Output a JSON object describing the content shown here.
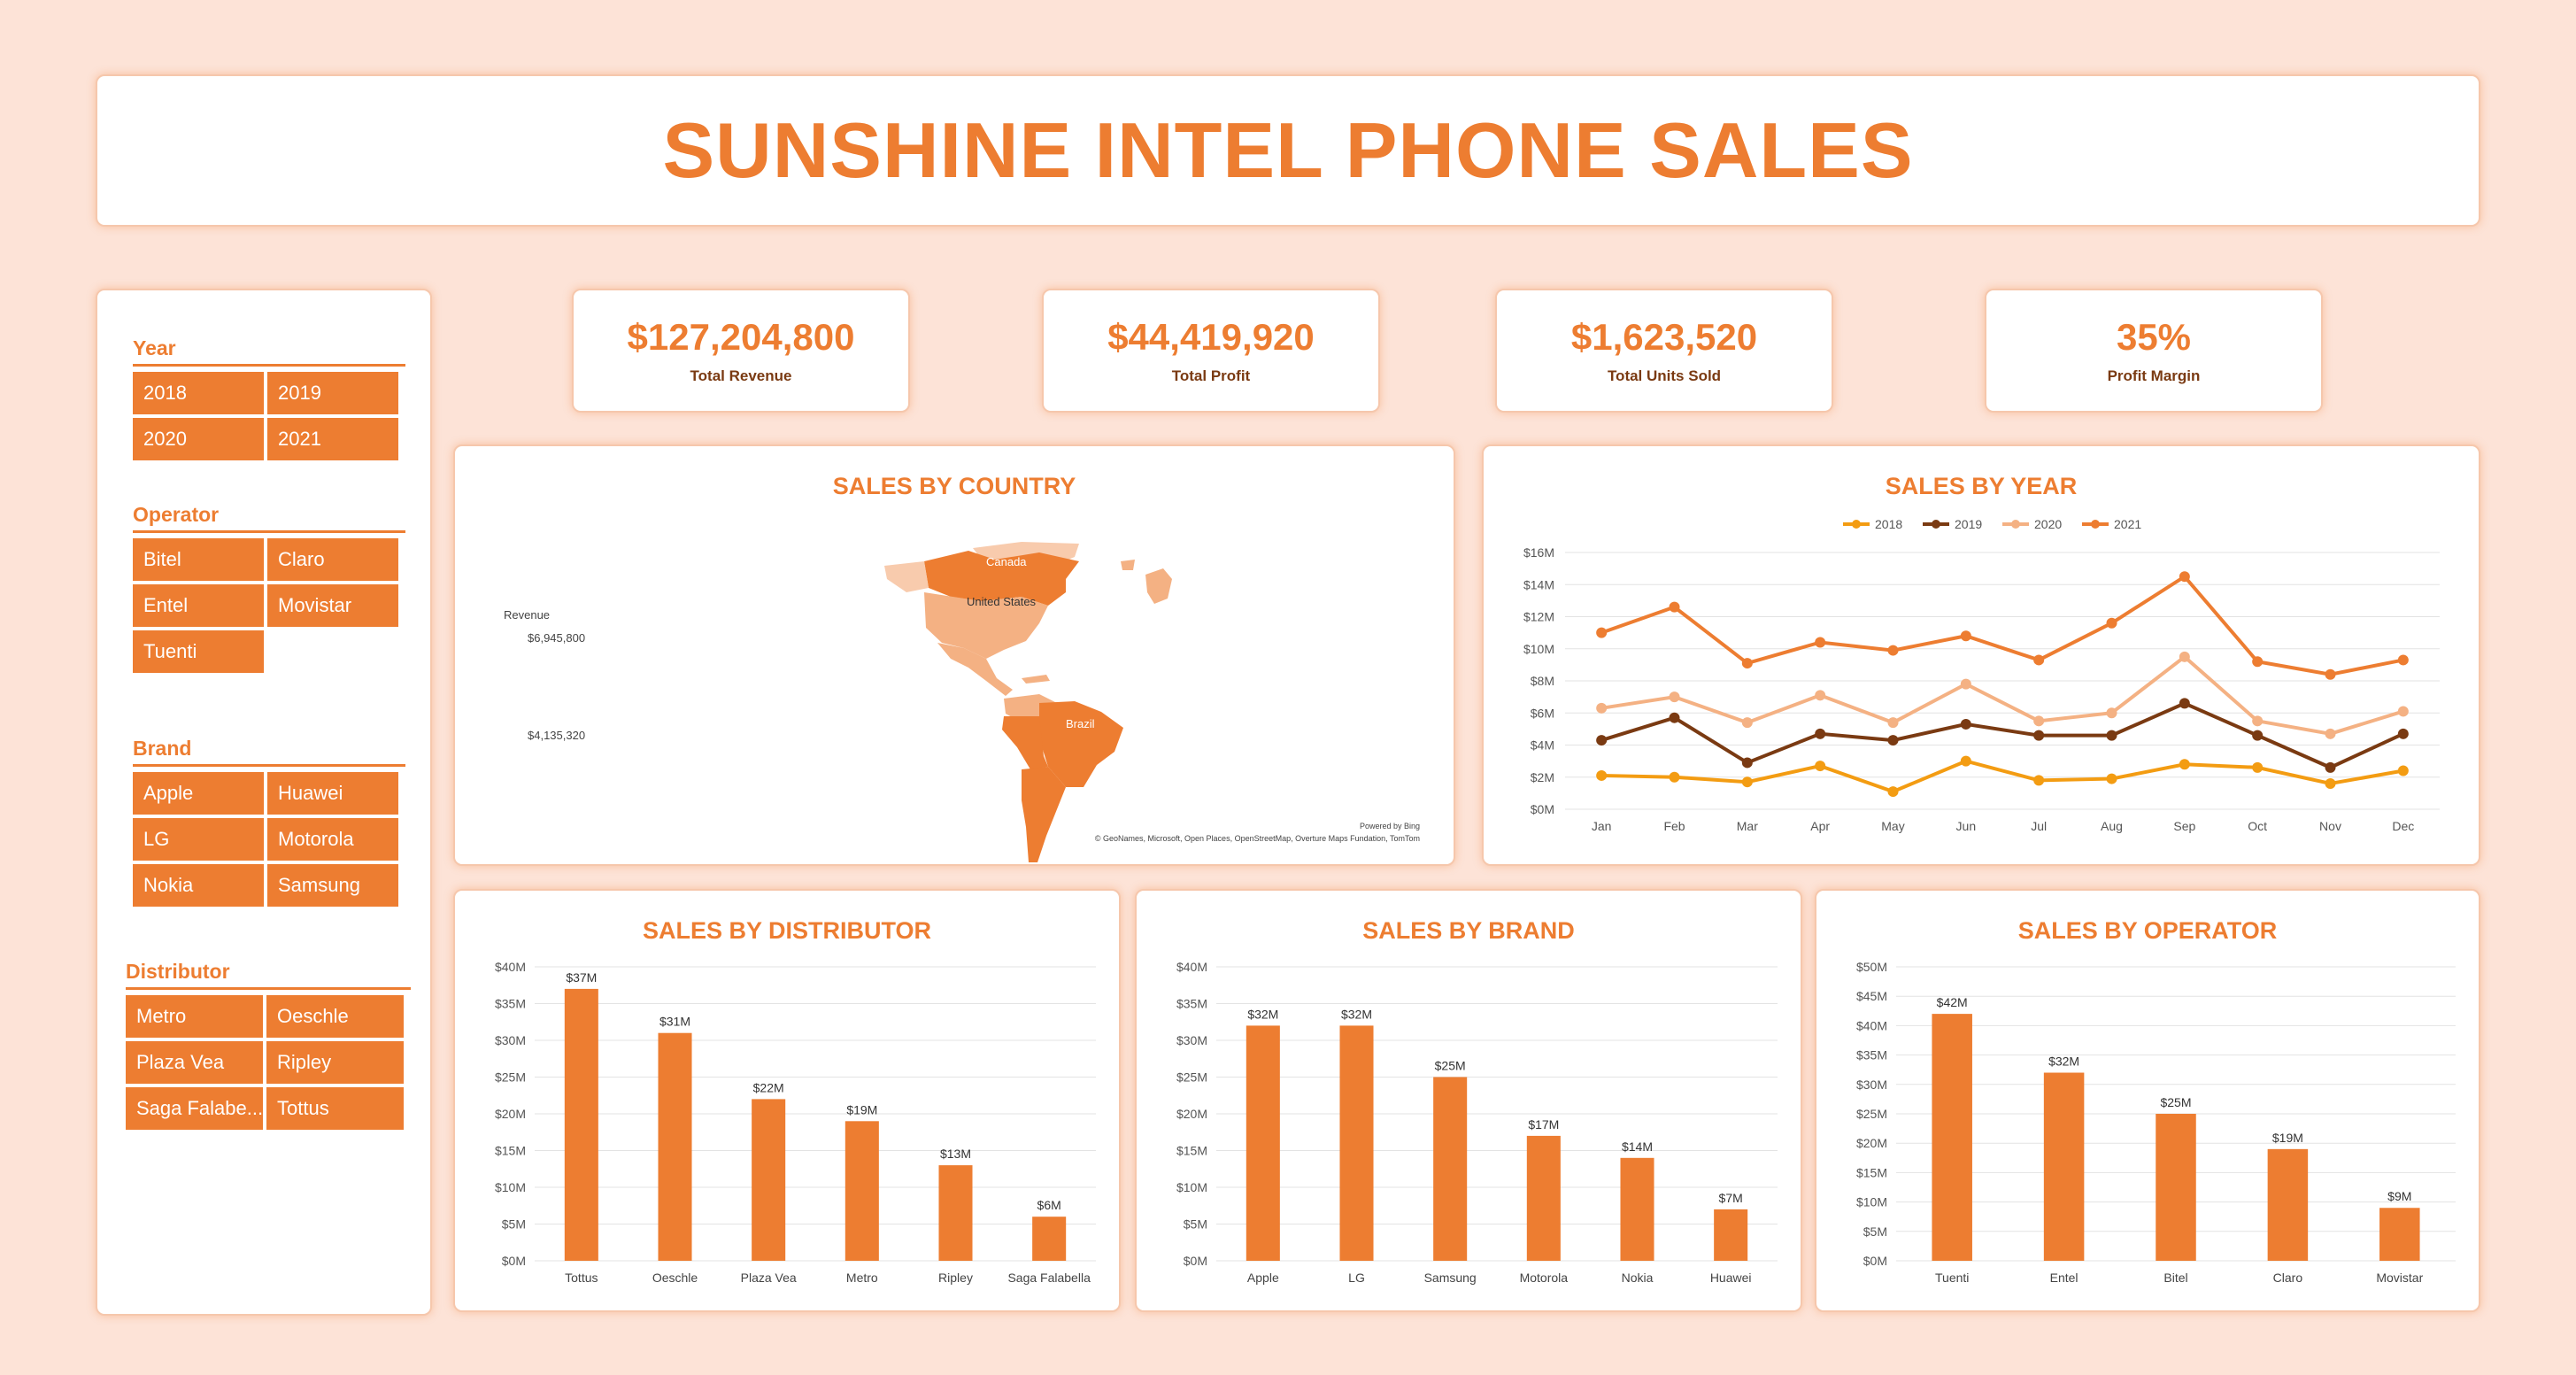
{
  "title": "SUNSHINE INTEL PHONE SALES",
  "colors": {
    "accent": "#ed7d31",
    "background": "#fde3d7",
    "dark": "#7a3a12"
  },
  "slicers": [
    {
      "key": "year",
      "header": "Year",
      "items": [
        "2018",
        "2019",
        "2020",
        "2021"
      ]
    },
    {
      "key": "operator",
      "header": "Operator",
      "items": [
        "Bitel",
        "Claro",
        "Entel",
        "Movistar",
        "Tuenti"
      ]
    },
    {
      "key": "brand",
      "header": "Brand",
      "items": [
        "Apple",
        "Huawei",
        "LG",
        "Motorola",
        "Nokia",
        "Samsung"
      ]
    },
    {
      "key": "distributor",
      "header": "Distributor",
      "items": [
        "Metro",
        "Oeschle",
        "Plaza Vea",
        "Ripley",
        "Saga Falabe...",
        "Tottus"
      ]
    }
  ],
  "kpis": [
    {
      "value": "$127,204,800",
      "label": "Total Revenue"
    },
    {
      "value": "$44,419,920",
      "label": "Total Profit"
    },
    {
      "value": "$1,623,520",
      "label": "Total Units Sold"
    },
    {
      "value": "35%",
      "label": "Profit Margin"
    }
  ],
  "map": {
    "title": "SALES BY COUNTRY",
    "legend_title": "Revenue",
    "legend_max": "$6,945,800",
    "legend_min": "$4,135,320",
    "labels": [
      "Canada",
      "United States",
      "Brazil"
    ],
    "powered": "Powered by Bing",
    "credits": "© GeoNames, Microsoft, Open Places, OpenStreetMap, Overture Maps Fundation, TomTom"
  },
  "chart_data": [
    {
      "id": "year",
      "type": "line",
      "title": "SALES BY YEAR",
      "categories": [
        "Jan",
        "Feb",
        "Mar",
        "Apr",
        "May",
        "Jun",
        "Jul",
        "Aug",
        "Sep",
        "Oct",
        "Nov",
        "Dec"
      ],
      "ylim": [
        0,
        16
      ],
      "yticks": [
        "$0M",
        "$2M",
        "$4M",
        "$6M",
        "$8M",
        "$10M",
        "$12M",
        "$14M",
        "$16M"
      ],
      "legend_position": "top-center",
      "series": [
        {
          "name": "2018",
          "color": "#f39c12",
          "values": [
            2.1,
            2.0,
            1.7,
            2.7,
            1.1,
            3.0,
            1.8,
            1.9,
            2.8,
            2.6,
            1.6,
            2.4
          ]
        },
        {
          "name": "2019",
          "color": "#7a3a12",
          "values": [
            4.3,
            5.7,
            2.9,
            4.7,
            4.3,
            5.3,
            4.6,
            4.6,
            6.6,
            4.6,
            2.6,
            4.7
          ]
        },
        {
          "name": "2020",
          "color": "#f4b183",
          "values": [
            6.3,
            7.0,
            5.4,
            7.1,
            5.4,
            7.8,
            5.5,
            6.0,
            9.5,
            5.5,
            4.7,
            6.1
          ]
        },
        {
          "name": "2021",
          "color": "#ed7d31",
          "values": [
            11.0,
            12.6,
            9.1,
            10.4,
            9.9,
            10.8,
            9.3,
            11.6,
            14.5,
            9.2,
            8.4,
            9.3
          ]
        }
      ]
    },
    {
      "id": "distributor",
      "type": "bar",
      "title": "SALES BY DISTRIBUTOR",
      "categories": [
        "Tottus",
        "Oeschle",
        "Plaza Vea",
        "Metro",
        "Ripley",
        "Saga Falabella"
      ],
      "values": [
        37,
        31,
        22,
        19,
        13,
        6
      ],
      "data_labels": [
        "$37M",
        "$31M",
        "$22M",
        "$19M",
        "$13M",
        "$6M"
      ],
      "ylim": [
        0,
        40
      ],
      "yticks": [
        "$0M",
        "$5M",
        "$10M",
        "$15M",
        "$20M",
        "$25M",
        "$30M",
        "$35M",
        "$40M"
      ]
    },
    {
      "id": "brand",
      "type": "bar",
      "title": "SALES BY BRAND",
      "categories": [
        "Apple",
        "LG",
        "Samsung",
        "Motorola",
        "Nokia",
        "Huawei"
      ],
      "values": [
        32,
        32,
        25,
        17,
        14,
        7
      ],
      "data_labels": [
        "$32M",
        "$32M",
        "$25M",
        "$17M",
        "$14M",
        "$7M"
      ],
      "ylim": [
        0,
        40
      ],
      "yticks": [
        "$0M",
        "$5M",
        "$10M",
        "$15M",
        "$20M",
        "$25M",
        "$30M",
        "$35M",
        "$40M"
      ]
    },
    {
      "id": "operator",
      "type": "bar",
      "title": "SALES BY OPERATOR",
      "categories": [
        "Tuenti",
        "Entel",
        "Bitel",
        "Claro",
        "Movistar"
      ],
      "values": [
        42,
        32,
        25,
        19,
        9
      ],
      "data_labels": [
        "$42M",
        "$32M",
        "$25M",
        "$19M",
        "$9M"
      ],
      "ylim": [
        0,
        50
      ],
      "yticks": [
        "$0M",
        "$5M",
        "$10M",
        "$15M",
        "$20M",
        "$25M",
        "$30M",
        "$35M",
        "$40M",
        "$45M",
        "$50M"
      ]
    }
  ]
}
